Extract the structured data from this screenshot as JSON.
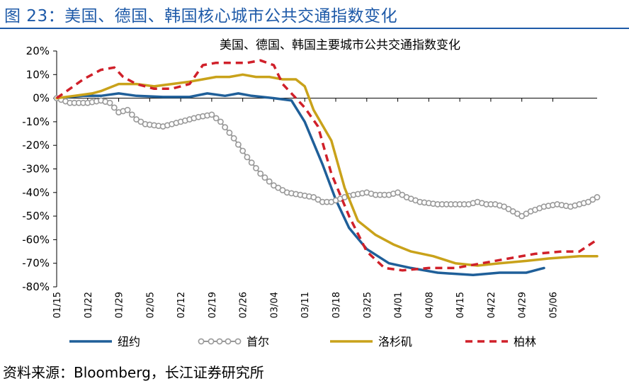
{
  "figure": {
    "title": "图 23：美国、德国、韩国核心城市公共交通指数变化",
    "source": "资料来源：Bloomberg，长江证券研究所"
  },
  "chart_data": {
    "type": "line",
    "title": "美国、德国、韩国主要城市公共交通指数变化",
    "xlabel": "",
    "ylabel": "",
    "ylim": [
      -80,
      20
    ],
    "y_ticks": [
      "20%",
      "10%",
      "0%",
      "-10%",
      "-20%",
      "-30%",
      "-40%",
      "-50%",
      "-60%",
      "-70%",
      "-80%"
    ],
    "y_tick_values": [
      20,
      10,
      0,
      -10,
      -20,
      -30,
      -40,
      -50,
      -60,
      -70,
      -80
    ],
    "x_ticks": [
      "01/15",
      "01/22",
      "01/29",
      "02/05",
      "02/12",
      "02/19",
      "02/26",
      "03/04",
      "03/11",
      "03/18",
      "03/25",
      "04/01",
      "04/08",
      "04/15",
      "04/22",
      "04/29",
      "05/06"
    ],
    "series": [
      {
        "name": "纽约",
        "color": "#1f5f99",
        "style": "solid",
        "points": [
          [
            0,
            0
          ],
          [
            6,
            1
          ],
          [
            10,
            1
          ],
          [
            14,
            2
          ],
          [
            18,
            1
          ],
          [
            24,
            0.5
          ],
          [
            30,
            0.5
          ],
          [
            34,
            2
          ],
          [
            38,
            1
          ],
          [
            41,
            2
          ],
          [
            44,
            1
          ],
          [
            49,
            0
          ],
          [
            53,
            -1
          ],
          [
            56,
            -10
          ],
          [
            60,
            -28
          ],
          [
            63,
            -43
          ],
          [
            66,
            -55
          ],
          [
            70,
            -64
          ],
          [
            75,
            -70
          ],
          [
            80,
            -72
          ],
          [
            86,
            -74
          ],
          [
            94,
            -75
          ],
          [
            100,
            -74
          ],
          [
            106,
            -74
          ],
          [
            110,
            -72
          ]
        ]
      },
      {
        "name": "首尔",
        "color": "#999999",
        "style": "circle-markers",
        "points": [
          [
            0,
            0
          ],
          [
            3,
            -2
          ],
          [
            7,
            -2
          ],
          [
            10,
            -1
          ],
          [
            12,
            -2
          ],
          [
            14,
            -6
          ],
          [
            16,
            -5
          ],
          [
            18,
            -9
          ],
          [
            20,
            -11
          ],
          [
            24,
            -12
          ],
          [
            28,
            -10
          ],
          [
            32,
            -8
          ],
          [
            35,
            -7
          ],
          [
            37,
            -10
          ],
          [
            40,
            -17
          ],
          [
            43,
            -25
          ],
          [
            46,
            -32
          ],
          [
            49,
            -37
          ],
          [
            52,
            -40
          ],
          [
            55,
            -41
          ],
          [
            58,
            -42
          ],
          [
            60,
            -44
          ],
          [
            62,
            -44
          ],
          [
            65,
            -42
          ],
          [
            67,
            -41
          ],
          [
            70,
            -40
          ],
          [
            72,
            -41
          ],
          [
            75,
            -41
          ],
          [
            77,
            -40
          ],
          [
            79,
            -42
          ],
          [
            82,
            -44
          ],
          [
            86,
            -45
          ],
          [
            90,
            -45
          ],
          [
            93,
            -45
          ],
          [
            95,
            -44
          ],
          [
            97,
            -45
          ],
          [
            99,
            -45
          ],
          [
            101,
            -46
          ],
          [
            103,
            -48
          ],
          [
            105,
            -50
          ],
          [
            107,
            -48
          ],
          [
            110,
            -46
          ],
          [
            113,
            -45
          ],
          [
            116,
            -46
          ],
          [
            118,
            -45
          ],
          [
            120,
            -44
          ],
          [
            122,
            -42
          ]
        ]
      },
      {
        "name": "洛杉矶",
        "color": "#c9a21a",
        "style": "solid",
        "points": [
          [
            0,
            0
          ],
          [
            4,
            1
          ],
          [
            8,
            2
          ],
          [
            10,
            3
          ],
          [
            14,
            6
          ],
          [
            18,
            6
          ],
          [
            22,
            5
          ],
          [
            26,
            6
          ],
          [
            30,
            7
          ],
          [
            33,
            8
          ],
          [
            36,
            9
          ],
          [
            39,
            9
          ],
          [
            42,
            10
          ],
          [
            45,
            9
          ],
          [
            48,
            9
          ],
          [
            51,
            8
          ],
          [
            54,
            8
          ],
          [
            56,
            5
          ],
          [
            58,
            -5
          ],
          [
            62,
            -18
          ],
          [
            65,
            -38
          ],
          [
            68,
            -52
          ],
          [
            72,
            -58
          ],
          [
            76,
            -62
          ],
          [
            80,
            -65
          ],
          [
            85,
            -67
          ],
          [
            90,
            -70
          ],
          [
            95,
            -71
          ],
          [
            100,
            -70
          ],
          [
            106,
            -69
          ],
          [
            111,
            -68
          ],
          [
            118,
            -67
          ],
          [
            122,
            -67
          ]
        ]
      },
      {
        "name": "柏林",
        "color": "#d0202a",
        "style": "dashed",
        "points": [
          [
            0,
            0
          ],
          [
            3,
            4
          ],
          [
            6,
            8
          ],
          [
            10,
            12
          ],
          [
            13,
            13
          ],
          [
            15,
            9
          ],
          [
            18,
            6
          ],
          [
            22,
            4
          ],
          [
            26,
            4
          ],
          [
            30,
            6
          ],
          [
            33,
            14
          ],
          [
            36,
            15
          ],
          [
            40,
            15
          ],
          [
            43,
            15
          ],
          [
            46,
            16
          ],
          [
            49,
            14
          ],
          [
            51,
            6
          ],
          [
            53,
            2
          ],
          [
            56,
            -4
          ],
          [
            59,
            -12
          ],
          [
            62,
            -32
          ],
          [
            66,
            -50
          ],
          [
            70,
            -65
          ],
          [
            74,
            -72
          ],
          [
            78,
            -73
          ],
          [
            84,
            -72
          ],
          [
            90,
            -72
          ],
          [
            96,
            -70
          ],
          [
            102,
            -68
          ],
          [
            108,
            -66
          ],
          [
            114,
            -65
          ],
          [
            118,
            -65
          ],
          [
            122,
            -60
          ]
        ]
      }
    ],
    "legend_position": "bottom",
    "grid": false
  }
}
